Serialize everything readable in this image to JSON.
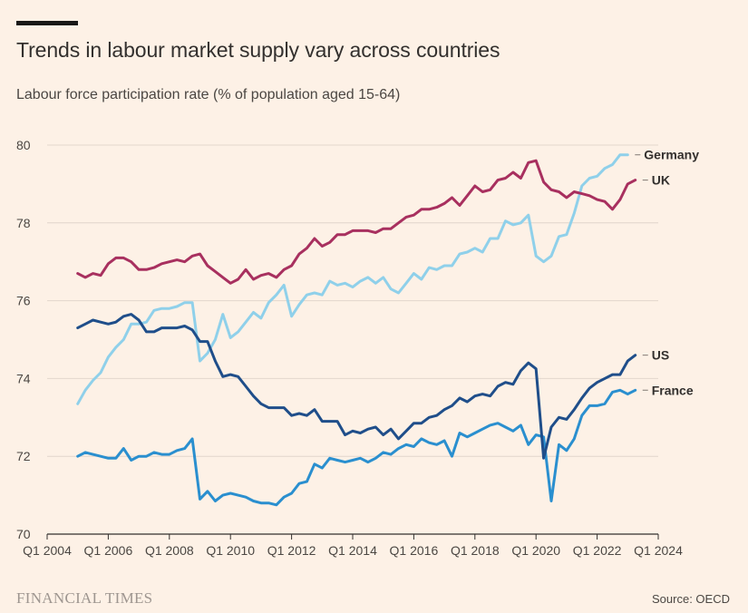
{
  "header": {
    "title": "Trends in labour market supply vary across countries",
    "subtitle": "Labour force participation rate (% of population aged 15-64)"
  },
  "footer": {
    "brand": "FINANCIAL TIMES",
    "source": "Source: OECD"
  },
  "colors": {
    "background": "#fdf1e6",
    "grid": "#e2d6cc",
    "axis": "#33302e",
    "Germany": "#8fd0ea",
    "UK": "#a8305f",
    "US": "#1f4e8a",
    "France": "#2a8fcf"
  },
  "chart_data": {
    "type": "line",
    "title": "Trends in labour market supply vary across countries",
    "subtitle": "Labour force participation rate (% of population aged 15-64)",
    "x_start": 2005.0,
    "x_step": 0.25,
    "xlim": [
      2004,
      2024
    ],
    "ylim": [
      70,
      80
    ],
    "yticks": [
      70,
      72,
      74,
      76,
      78,
      80
    ],
    "xticks": [
      {
        "value": 2004,
        "label": "Q1 2004"
      },
      {
        "value": 2006,
        "label": "Q1 2006"
      },
      {
        "value": 2008,
        "label": "Q1 2008"
      },
      {
        "value": 2010,
        "label": "Q1 2010"
      },
      {
        "value": 2012,
        "label": "Q1 2012"
      },
      {
        "value": 2014,
        "label": "Q1 2014"
      },
      {
        "value": 2016,
        "label": "Q1 2016"
      },
      {
        "value": 2018,
        "label": "Q1 2018"
      },
      {
        "value": 2020,
        "label": "Q1 2020"
      },
      {
        "value": 2022,
        "label": "Q1 2022"
      },
      {
        "value": 2024,
        "label": "Q1 2024"
      }
    ],
    "grid": "horizontal",
    "legend": "direct labels at line ends",
    "series": [
      {
        "name": "Germany",
        "values": [
          73.35,
          73.7,
          73.95,
          74.15,
          74.55,
          74.8,
          75.0,
          75.4,
          75.4,
          75.45,
          75.75,
          75.8,
          75.8,
          75.85,
          75.95,
          75.95,
          74.45,
          74.65,
          75.0,
          75.65,
          75.05,
          75.2,
          75.45,
          75.7,
          75.55,
          75.95,
          76.15,
          76.4,
          75.6,
          75.9,
          76.15,
          76.2,
          76.15,
          76.5,
          76.4,
          76.45,
          76.35,
          76.5,
          76.6,
          76.45,
          76.6,
          76.3,
          76.2,
          76.45,
          76.7,
          76.55,
          76.85,
          76.8,
          76.9,
          76.9,
          77.2,
          77.25,
          77.35,
          77.25,
          77.6,
          77.6,
          78.05,
          77.95,
          78.0,
          78.2,
          77.15,
          77.0,
          77.15,
          77.65,
          77.7,
          78.25,
          78.95,
          79.15,
          79.2,
          79.4,
          79.5,
          79.75,
          79.75
        ]
      },
      {
        "name": "UK",
        "values": [
          76.7,
          76.6,
          76.7,
          76.65,
          76.95,
          77.1,
          77.1,
          77.0,
          76.8,
          76.8,
          76.85,
          76.95,
          77.0,
          77.05,
          77.0,
          77.15,
          77.2,
          76.9,
          76.75,
          76.6,
          76.45,
          76.55,
          76.8,
          76.55,
          76.65,
          76.7,
          76.6,
          76.8,
          76.9,
          77.2,
          77.35,
          77.6,
          77.4,
          77.5,
          77.7,
          77.7,
          77.8,
          77.8,
          77.8,
          77.75,
          77.85,
          77.85,
          78.0,
          78.15,
          78.2,
          78.35,
          78.35,
          78.4,
          78.5,
          78.65,
          78.45,
          78.7,
          78.95,
          78.8,
          78.85,
          79.1,
          79.15,
          79.3,
          79.15,
          79.55,
          79.6,
          79.05,
          78.85,
          78.8,
          78.65,
          78.8,
          78.75,
          78.7,
          78.6,
          78.55,
          78.35,
          78.6,
          79.0,
          79.1
        ]
      },
      {
        "name": "US",
        "values": [
          75.3,
          75.4,
          75.5,
          75.45,
          75.4,
          75.45,
          75.6,
          75.65,
          75.5,
          75.2,
          75.2,
          75.3,
          75.3,
          75.3,
          75.35,
          75.25,
          74.95,
          74.95,
          74.45,
          74.05,
          74.1,
          74.05,
          73.8,
          73.55,
          73.35,
          73.25,
          73.25,
          73.25,
          73.05,
          73.1,
          73.05,
          73.2,
          72.9,
          72.9,
          72.9,
          72.55,
          72.65,
          72.6,
          72.7,
          72.75,
          72.55,
          72.7,
          72.45,
          72.65,
          72.85,
          72.85,
          73.0,
          73.05,
          73.2,
          73.3,
          73.5,
          73.4,
          73.55,
          73.6,
          73.55,
          73.8,
          73.9,
          73.85,
          74.2,
          74.4,
          74.25,
          71.95,
          72.75,
          73.0,
          72.95,
          73.2,
          73.5,
          73.75,
          73.9,
          74.0,
          74.1,
          74.1,
          74.45,
          74.6
        ]
      },
      {
        "name": "France",
        "values": [
          72.0,
          72.1,
          72.05,
          72.0,
          71.95,
          71.95,
          72.2,
          71.9,
          72.0,
          72.0,
          72.1,
          72.05,
          72.05,
          72.15,
          72.2,
          72.45,
          70.9,
          71.1,
          70.85,
          71.0,
          71.05,
          71.0,
          70.95,
          70.85,
          70.8,
          70.8,
          70.75,
          70.95,
          71.05,
          71.3,
          71.35,
          71.8,
          71.7,
          71.95,
          71.9,
          71.85,
          71.9,
          71.95,
          71.85,
          71.95,
          72.1,
          72.05,
          72.2,
          72.3,
          72.25,
          72.45,
          72.35,
          72.3,
          72.4,
          72.0,
          72.6,
          72.5,
          72.6,
          72.7,
          72.8,
          72.85,
          72.75,
          72.65,
          72.8,
          72.3,
          72.55,
          72.5,
          70.85,
          72.3,
          72.15,
          72.45,
          73.05,
          73.3,
          73.3,
          73.35,
          73.65,
          73.7,
          73.6,
          73.7
        ]
      }
    ]
  }
}
